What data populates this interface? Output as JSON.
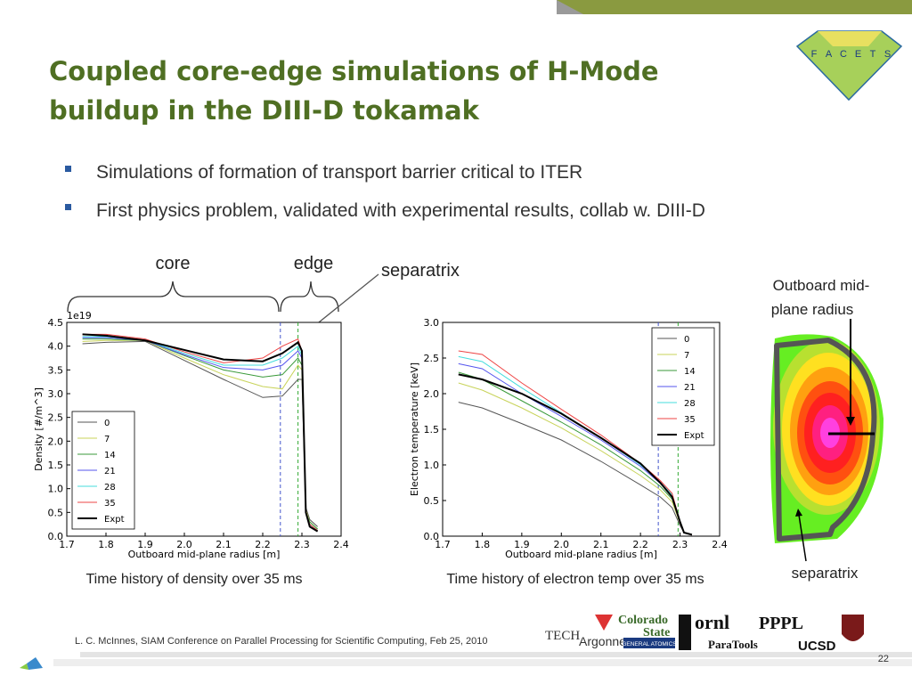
{
  "title_line1": "Coupled core-edge simulations of H-Mode",
  "title_line2": "buildup in the DIII-D tokamak",
  "bullets": [
    "Simulations of formation of transport barrier critical to ITER",
    "First physics problem, validated with experimental results, collab w. DIII-D"
  ],
  "annotations": {
    "core": "core",
    "edge": "edge",
    "separatrix": "separatrix"
  },
  "captions": [
    "Time history of density over 35 ms",
    "Time history of electron temp over 35 ms"
  ],
  "diagram": {
    "label_line1": "Outboard mid-",
    "label_line2": "plane radius",
    "separatrix": "separatrix"
  },
  "logo_letters": [
    "F",
    "A",
    "C",
    "E",
    "T",
    "S"
  ],
  "partner_logos": [
    "TECH",
    "Argonne",
    "Colorado",
    "State",
    "GENERAL ATOMICS",
    "ornl",
    "ParaTools",
    "PPPL",
    "UCSD"
  ],
  "footer": "L. C. McInnes, SIAM Conference on Parallel Processing for Scientific Computing, Feb 25, 2010",
  "page_number": "22",
  "chart_data": [
    {
      "type": "line",
      "xlabel": "Outboard mid-plane radius [m]",
      "ylabel": "Density [#/m^3]",
      "offset_text": "1e19",
      "x": [
        1.74,
        1.8,
        1.9,
        2.0,
        2.1,
        2.2,
        2.25,
        2.29,
        2.3,
        2.31,
        2.32,
        2.34
      ],
      "xlim": [
        1.7,
        2.4
      ],
      "ylim": [
        0,
        4.5
      ],
      "xticks": [
        1.7,
        1.8,
        1.9,
        {
          "value": 2.0,
          "label": "2.0"
        },
        2.1,
        2.2,
        2.3,
        2.4
      ],
      "yticks": [
        {
          "value": 0,
          "label": "0.0"
        },
        0.5,
        {
          "value": 1,
          "label": "1.0"
        },
        1.5,
        {
          "value": 2,
          "label": "2.0"
        },
        2.5,
        {
          "value": 3,
          "label": "3.0"
        },
        3.5,
        {
          "value": 4,
          "label": "4.0"
        },
        4.5
      ],
      "legend": "lower left",
      "vlines": [
        {
          "x": 2.245,
          "color": "#4455cc"
        },
        {
          "x": 2.29,
          "color": "#33aa33"
        }
      ],
      "series": [
        {
          "name": "0",
          "color": "#555555",
          "values": [
            4.05,
            4.08,
            4.1,
            3.7,
            3.3,
            2.92,
            2.95,
            3.3,
            3.3,
            0.6,
            0.35,
            0.2
          ]
        },
        {
          "name": "7",
          "color": "#c8d35a",
          "values": [
            4.1,
            4.12,
            4.12,
            3.75,
            3.4,
            3.15,
            3.1,
            3.6,
            3.5,
            0.55,
            0.3,
            0.15
          ]
        },
        {
          "name": "14",
          "color": "#3a9a3a",
          "values": [
            4.15,
            4.15,
            4.12,
            3.8,
            3.5,
            3.35,
            3.4,
            3.75,
            3.6,
            0.5,
            0.3,
            0.15
          ]
        },
        {
          "name": "21",
          "color": "#5555ee",
          "values": [
            4.18,
            4.18,
            4.12,
            3.82,
            3.55,
            3.5,
            3.6,
            3.9,
            3.75,
            0.5,
            0.25,
            0.12
          ]
        },
        {
          "name": "28",
          "color": "#44dddd",
          "values": [
            4.2,
            4.2,
            4.13,
            3.85,
            3.6,
            3.6,
            3.75,
            4.0,
            3.8,
            0.5,
            0.25,
            0.12
          ]
        },
        {
          "name": "35",
          "color": "#ee4444",
          "values": [
            4.25,
            4.25,
            4.15,
            3.88,
            3.65,
            3.75,
            4.0,
            4.15,
            3.9,
            0.5,
            0.25,
            0.12
          ]
        },
        {
          "name": "Expt",
          "color": "#000000",
          "values": [
            4.25,
            4.22,
            4.12,
            3.92,
            3.72,
            3.68,
            3.85,
            4.08,
            3.9,
            0.5,
            0.2,
            0.1
          ]
        }
      ]
    },
    {
      "type": "line",
      "xlabel": "Outboard mid-plane radius [m]",
      "ylabel": "Electron temperature [keV]",
      "x": [
        1.74,
        1.8,
        1.9,
        2.0,
        2.1,
        2.2,
        2.25,
        2.28,
        2.3,
        2.31,
        2.33
      ],
      "xlim": [
        1.7,
        2.4
      ],
      "ylim": [
        0,
        3
      ],
      "xticks": [
        1.7,
        1.8,
        1.9,
        {
          "value": 2.0,
          "label": "2.0"
        },
        2.1,
        2.2,
        2.3,
        2.4
      ],
      "yticks": [
        {
          "value": 0,
          "label": "0.0"
        },
        0.5,
        {
          "value": 1,
          "label": "1.0"
        },
        1.5,
        {
          "value": 2,
          "label": "2.0"
        },
        2.5,
        {
          "value": 3,
          "label": "3.0"
        }
      ],
      "legend": "upper right",
      "vlines": [
        {
          "x": 2.245,
          "color": "#4455cc"
        },
        {
          "x": 2.295,
          "color": "#33aa33"
        }
      ],
      "series": [
        {
          "name": "0",
          "color": "#555555",
          "values": [
            1.88,
            1.8,
            1.58,
            1.35,
            1.05,
            0.72,
            0.55,
            0.4,
            0.15,
            0.05,
            0.02
          ]
        },
        {
          "name": "7",
          "color": "#c8d35a",
          "values": [
            2.15,
            2.05,
            1.8,
            1.52,
            1.2,
            0.85,
            0.65,
            0.48,
            0.18,
            0.05,
            0.02
          ]
        },
        {
          "name": "14",
          "color": "#3a9a3a",
          "values": [
            2.3,
            2.2,
            1.9,
            1.6,
            1.28,
            0.92,
            0.7,
            0.52,
            0.2,
            0.05,
            0.02
          ]
        },
        {
          "name": "21",
          "color": "#5555ee",
          "values": [
            2.42,
            2.35,
            2.0,
            1.68,
            1.35,
            0.98,
            0.74,
            0.56,
            0.2,
            0.05,
            0.02
          ]
        },
        {
          "name": "28",
          "color": "#44dddd",
          "values": [
            2.52,
            2.45,
            2.08,
            1.73,
            1.38,
            1.0,
            0.76,
            0.58,
            0.2,
            0.05,
            0.02
          ]
        },
        {
          "name": "35",
          "color": "#ee4444",
          "values": [
            2.6,
            2.55,
            2.15,
            1.78,
            1.42,
            1.02,
            0.78,
            0.6,
            0.2,
            0.05,
            0.02
          ]
        },
        {
          "name": "Expt",
          "color": "#000000",
          "values": [
            2.27,
            2.2,
            2.0,
            1.72,
            1.38,
            1.02,
            0.75,
            0.55,
            0.2,
            0.05,
            0.02
          ]
        }
      ]
    }
  ]
}
